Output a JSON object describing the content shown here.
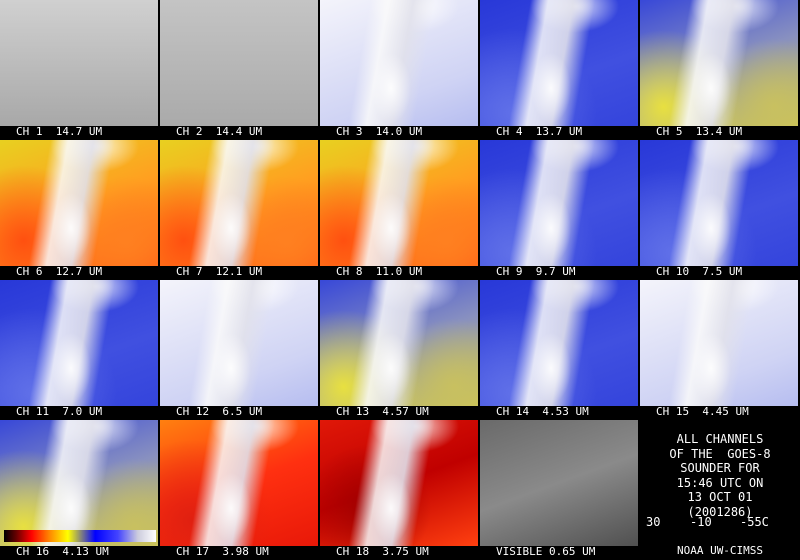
{
  "panels": [
    {
      "label": "CH 1  14.7 UM"
    },
    {
      "label": "CH 2  14.4 UM"
    },
    {
      "label": "CH 3  14.0 UM"
    },
    {
      "label": "CH 4  13.7 UM"
    },
    {
      "label": "CH 5  13.4 UM"
    },
    {
      "label": "CH 6  12.7 UM"
    },
    {
      "label": "CH 7  12.1 UM"
    },
    {
      "label": "CH 8  11.0 UM"
    },
    {
      "label": "CH 9  9.7 UM"
    },
    {
      "label": "CH 10  7.5 UM"
    },
    {
      "label": "CH 11  7.0 UM"
    },
    {
      "label": "CH 12  6.5 UM"
    },
    {
      "label": "CH 13  4.57 UM"
    },
    {
      "label": "CH 14  4.53 UM"
    },
    {
      "label": "CH 15  4.45 UM"
    },
    {
      "label": "CH 16  4.13 UM"
    },
    {
      "label": "CH 17  3.98 UM"
    },
    {
      "label": "CH 18  3.75 UM"
    },
    {
      "label": "VISIBLE 0.65 UM"
    }
  ],
  "info": {
    "lines": [
      "ALL CHANNELS",
      "OF THE  GOES-8",
      "SOUNDER FOR",
      "15:46 UTC ON",
      "13 OCT 01",
      "(2001286)"
    ],
    "scale_labels": [
      "30",
      "-10",
      "-55C"
    ],
    "credit": "NOAA UW-CIMSS"
  }
}
